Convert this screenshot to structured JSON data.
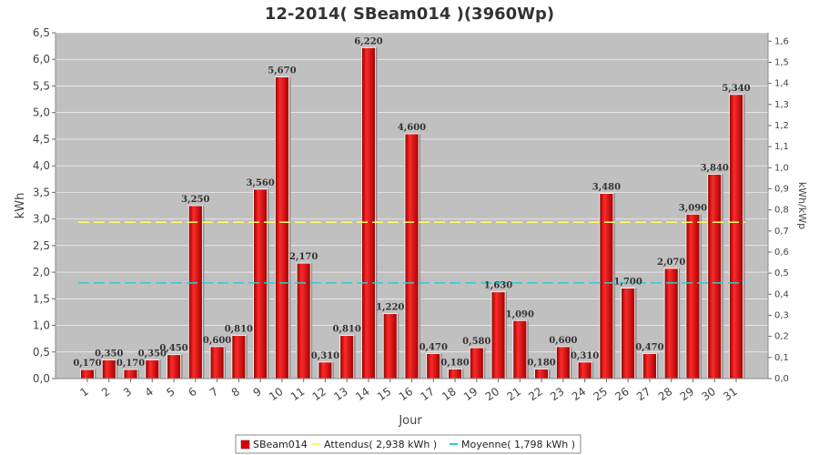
{
  "chart_data": {
    "type": "bar",
    "title": "12-2014( SBeam014 )(3960Wp)",
    "xlabel": "Jour",
    "ylabel": "kWh",
    "ylabel_right": "kWh/kWp",
    "ylim": [
      0,
      6.5
    ],
    "ylim_right": [
      0,
      1.64
    ],
    "yticks": [
      "0,0",
      "0,5",
      "1,0",
      "1,5",
      "2,0",
      "2,5",
      "3,0",
      "3,5",
      "4,0",
      "4,5",
      "5,0",
      "5,5",
      "6,0",
      "6,5"
    ],
    "yticks_right": [
      "0,0",
      "0,1",
      "0,2",
      "0,3",
      "0,4",
      "0,5",
      "0,6",
      "0,7",
      "0,8",
      "0,9",
      "1,0",
      "1,1",
      "1,2",
      "1,3",
      "1,4",
      "1,5",
      "1,6"
    ],
    "categories": [
      "1",
      "2",
      "3",
      "4",
      "5",
      "6",
      "7",
      "8",
      "9",
      "10",
      "11",
      "12",
      "13",
      "14",
      "15",
      "16",
      "17",
      "18",
      "19",
      "20",
      "21",
      "22",
      "23",
      "24",
      "25",
      "26",
      "27",
      "28",
      "29",
      "30",
      "31"
    ],
    "series": [
      {
        "name": "SBeam014",
        "color": "#dd0000",
        "values": [
          0.17,
          0.35,
          0.17,
          0.35,
          0.45,
          3.25,
          0.6,
          0.81,
          3.56,
          5.67,
          2.17,
          0.31,
          0.81,
          6.22,
          1.22,
          4.6,
          0.47,
          0.18,
          0.58,
          1.63,
          1.09,
          0.18,
          0.6,
          0.31,
          3.48,
          1.7,
          0.47,
          2.07,
          3.09,
          3.84,
          5.34
        ],
        "value_labels": [
          "0,170",
          "0,350",
          "0,170",
          "0,350",
          "0,450",
          "3,250",
          "0,600",
          "0,810",
          "3,560",
          "5,670",
          "2,170",
          "0,310",
          "0,810",
          "6,220",
          "1,220",
          "4,600",
          "0,470",
          "0,180",
          "0,580",
          "1,630",
          "1,090",
          "0,180",
          "0,600",
          "0,310",
          "3,480",
          "1,700",
          "0,470",
          "2,070",
          "3,090",
          "3,840",
          "5,340"
        ]
      }
    ],
    "reference_lines": [
      {
        "name": "Attendus( 2,938 kWh )",
        "value": 2.938,
        "color": "#ffff66",
        "style": "dashed"
      },
      {
        "name": "Moyenne( 1,798 kWh )",
        "value": 1.798,
        "color": "#33cccc",
        "style": "dashed"
      }
    ],
    "grid": true,
    "legend_position": "bottom",
    "plot_background": "#c0c0c0"
  }
}
